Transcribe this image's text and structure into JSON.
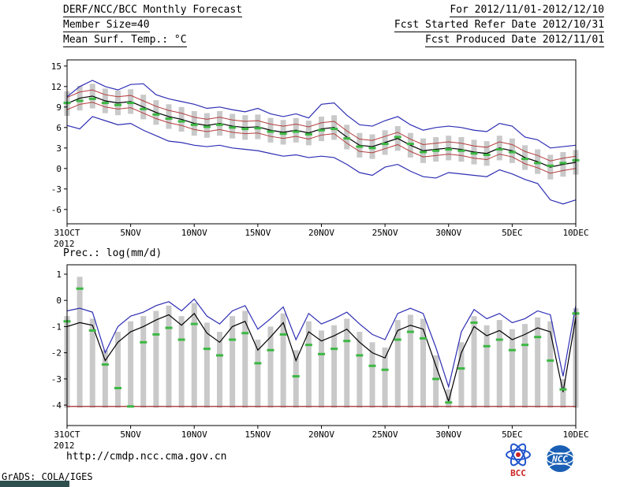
{
  "header": {
    "left": [
      "DERF/NCC/BCC Monthly Forecast",
      "Member Size=40",
      "Mean Surf. Temp.: °C"
    ],
    "right": [
      "For 2012/11/01-2012/12/10",
      "Fcst Started Refer Date 2012/10/31",
      "Fcst Produced Date 2012/11/01"
    ]
  },
  "footer": {
    "url": "http://cmdp.ncc.cma.gov.cn",
    "grads_credit": "GrADS: COLA/IGES",
    "bcc_label": "BCC",
    "ncc_label": "NCC"
  },
  "colors": {
    "bar": "#c9c9c9",
    "mean": "#000000",
    "spread": "#b43c3c",
    "envelope": "#2e2eb4",
    "median": "#3cb843",
    "baseline": "#a02828",
    "frame": "#000000"
  },
  "chart_data": [
    {
      "type": "line",
      "title": "Mean Surf. Temp.: °C",
      "x_year_label": "2012",
      "x_tick_positions": [
        0,
        5,
        10,
        15,
        20,
        25,
        30,
        35,
        40
      ],
      "x_tick_labels": [
        "31OCT",
        "5NOV",
        "10NOV",
        "15NOV",
        "20NOV",
        "25NOV",
        "30NOV",
        "5DEC",
        "10DEC"
      ],
      "y_ticks": [
        15,
        12,
        9,
        6,
        3,
        0,
        -3,
        -6
      ],
      "ylim": [
        -8.1,
        15.9
      ],
      "xlim": [
        0,
        40
      ],
      "series": [
        {
          "name": "max-envelope",
          "color": "#2e2eb4",
          "width": 1.2,
          "values": [
            10.5,
            12.0,
            12.9,
            12.0,
            11.5,
            12.3,
            12.4,
            10.8,
            10.2,
            9.8,
            9.4,
            8.8,
            9.0,
            8.6,
            8.3,
            8.8,
            8.0,
            7.6,
            8.0,
            7.4,
            9.4,
            9.6,
            7.8,
            6.4,
            6.2,
            7.0,
            7.6,
            6.4,
            5.6,
            6.0,
            6.2,
            6.0,
            5.6,
            5.4,
            6.6,
            6.2,
            4.6,
            4.2,
            3.0,
            3.2,
            3.4
          ]
        },
        {
          "name": "upper-spread",
          "color": "#b43c3c",
          "width": 1.0,
          "values": [
            10.4,
            11.2,
            11.5,
            10.8,
            10.5,
            10.7,
            9.9,
            9.1,
            8.5,
            8.1,
            7.5,
            7.2,
            7.5,
            7.1,
            6.9,
            7.0,
            6.5,
            6.2,
            6.5,
            6.1,
            6.7,
            6.9,
            5.5,
            4.3,
            4.1,
            4.7,
            5.3,
            4.3,
            3.5,
            3.7,
            3.9,
            3.7,
            3.3,
            3.1,
            3.9,
            3.5,
            2.5,
            1.9,
            1.1,
            1.5,
            1.8
          ]
        },
        {
          "name": "ensemble-mean",
          "color": "#000000",
          "width": 1.2,
          "values": [
            9.5,
            10.3,
            10.6,
            9.9,
            9.6,
            9.8,
            9.0,
            8.2,
            7.6,
            7.2,
            6.6,
            6.3,
            6.6,
            6.2,
            6.0,
            6.1,
            5.6,
            5.3,
            5.6,
            5.2,
            5.8,
            6.0,
            4.6,
            3.4,
            3.2,
            3.8,
            4.4,
            3.4,
            2.6,
            2.8,
            3.0,
            2.8,
            2.4,
            2.2,
            3.0,
            2.6,
            1.6,
            1.0,
            0.2,
            0.6,
            0.9
          ]
        },
        {
          "name": "lower-spread",
          "color": "#b43c3c",
          "width": 1.0,
          "values": [
            8.6,
            9.4,
            9.7,
            9.0,
            8.7,
            8.9,
            8.1,
            7.3,
            6.7,
            6.3,
            5.7,
            5.4,
            5.7,
            5.3,
            5.1,
            5.2,
            4.7,
            4.4,
            4.7,
            4.3,
            4.9,
            5.1,
            3.7,
            2.5,
            2.3,
            2.9,
            3.5,
            2.5,
            1.7,
            1.9,
            2.1,
            1.9,
            1.5,
            1.3,
            2.1,
            1.7,
            0.7,
            0.1,
            -0.7,
            -0.3,
            0.0
          ]
        },
        {
          "name": "min-envelope",
          "color": "#2e2eb4",
          "width": 1.2,
          "values": [
            6.3,
            5.8,
            7.6,
            7.0,
            6.4,
            6.6,
            5.6,
            4.8,
            4.0,
            3.8,
            3.4,
            3.2,
            3.4,
            3.0,
            2.8,
            2.6,
            2.2,
            1.8,
            2.0,
            1.6,
            1.8,
            1.6,
            0.6,
            -0.6,
            -1.0,
            0.2,
            0.6,
            -0.4,
            -1.2,
            -1.4,
            -0.6,
            -0.8,
            -1.0,
            -1.2,
            -0.2,
            -0.8,
            -1.6,
            -2.2,
            -4.6,
            -5.2,
            -4.6
          ]
        }
      ],
      "median_marks": {
        "name": "ensemble-median",
        "color": "#3cb843",
        "values": [
          9.6,
          9.9,
          10.2,
          9.6,
          9.3,
          9.6,
          8.7,
          7.9,
          7.3,
          6.9,
          6.4,
          6.1,
          6.4,
          6.0,
          5.8,
          5.9,
          5.4,
          5.1,
          5.4,
          5.0,
          5.6,
          5.8,
          4.4,
          3.2,
          3.0,
          3.6,
          4.6,
          3.6,
          2.4,
          2.6,
          2.8,
          2.6,
          2.2,
          2.0,
          2.8,
          2.4,
          1.4,
          0.8,
          0.4,
          0.8,
          1.2
        ]
      },
      "bars": {
        "name": "ensemble-spread-bars",
        "color": "#c9c9c9",
        "top": [
          11.3,
          12.1,
          12.4,
          11.7,
          11.4,
          11.6,
          10.8,
          10.0,
          9.4,
          9.0,
          8.4,
          8.1,
          8.4,
          8.0,
          7.8,
          7.9,
          7.4,
          7.1,
          7.4,
          7.0,
          7.6,
          7.8,
          6.4,
          5.2,
          5.0,
          5.6,
          6.2,
          5.2,
          4.4,
          4.6,
          4.8,
          4.6,
          4.2,
          4.0,
          4.8,
          4.4,
          3.4,
          2.8,
          2.0,
          2.4,
          2.7
        ],
        "bottom": [
          7.7,
          8.5,
          8.8,
          8.1,
          7.8,
          8.0,
          7.2,
          6.4,
          5.8,
          5.4,
          4.8,
          4.5,
          4.8,
          4.4,
          4.2,
          4.3,
          3.8,
          3.5,
          3.8,
          3.4,
          4.0,
          4.2,
          2.8,
          1.6,
          1.4,
          2.0,
          2.6,
          1.6,
          0.8,
          1.0,
          1.2,
          1.0,
          0.6,
          0.4,
          1.2,
          0.8,
          -0.2,
          -0.8,
          -1.6,
          -1.2,
          -0.9
        ]
      }
    },
    {
      "type": "line",
      "title": "Prec.: log(mm/d)",
      "x_year_label": "2012",
      "x_tick_positions": [
        0,
        5,
        10,
        15,
        20,
        25,
        30,
        35,
        40
      ],
      "x_tick_labels": [
        "31OCT",
        "5NOV",
        "10NOV",
        "15NOV",
        "20NOV",
        "25NOV",
        "30NOV",
        "5DEC",
        "10DEC"
      ],
      "y_ticks": [
        1,
        0,
        -1,
        -2,
        -3,
        -4
      ],
      "ylim": [
        -4.78,
        1.36
      ],
      "xlim": [
        0,
        40
      ],
      "baseline": {
        "value": -4.05,
        "color": "#a02828"
      },
      "series": [
        {
          "name": "max-envelope",
          "color": "#2e2eb4",
          "width": 1.2,
          "values": [
            -0.4,
            -0.3,
            -0.45,
            -2.0,
            -1.0,
            -0.6,
            -0.45,
            -0.2,
            -0.05,
            -0.4,
            0.05,
            -0.6,
            -0.9,
            -0.4,
            -0.2,
            -1.1,
            -0.7,
            -0.25,
            -1.5,
            -0.5,
            -0.9,
            -0.7,
            -0.45,
            -0.9,
            -1.3,
            -1.5,
            -0.5,
            -0.3,
            -0.5,
            -1.8,
            -3.3,
            -1.2,
            -0.35,
            -0.7,
            -0.5,
            -0.85,
            -0.7,
            -0.4,
            -0.55,
            -2.9,
            -0.2
          ]
        },
        {
          "name": "ensemble-mean",
          "color": "#000000",
          "width": 1.2,
          "values": [
            -1.0,
            -0.85,
            -0.95,
            -2.3,
            -1.6,
            -1.2,
            -1.0,
            -0.75,
            -0.55,
            -0.95,
            -0.5,
            -1.25,
            -1.6,
            -1.0,
            -0.8,
            -1.9,
            -1.4,
            -0.85,
            -2.3,
            -1.2,
            -1.55,
            -1.35,
            -1.1,
            -1.6,
            -2.0,
            -2.2,
            -1.15,
            -0.95,
            -1.1,
            -2.5,
            -3.85,
            -2.0,
            -1.0,
            -1.35,
            -1.15,
            -1.5,
            -1.3,
            -1.05,
            -1.2,
            -3.5,
            -0.65
          ]
        }
      ],
      "median_marks": {
        "name": "ensemble-median",
        "color": "#3cb843",
        "values": [
          -0.8,
          0.45,
          -1.15,
          -2.45,
          -3.35,
          -4.05,
          -1.6,
          -1.3,
          -1.05,
          -1.5,
          -0.9,
          -1.85,
          -2.1,
          -1.5,
          -1.25,
          -2.4,
          -1.9,
          -1.3,
          -2.9,
          -1.7,
          -2.05,
          -1.85,
          -1.55,
          -2.1,
          -2.5,
          -2.65,
          -1.5,
          -1.2,
          -1.45,
          -3.0,
          -3.9,
          -2.6,
          -0.85,
          -1.75,
          -1.5,
          -1.9,
          -1.7,
          -1.4,
          -2.3,
          -3.4,
          -0.5
        ]
      },
      "bars": {
        "name": "ensemble-spread-bars",
        "color": "#c9c9c9",
        "top": [
          -0.6,
          0.9,
          -0.7,
          -1.9,
          -1.2,
          -0.8,
          -0.6,
          -0.4,
          -0.2,
          -0.6,
          -0.1,
          -0.85,
          -1.2,
          -0.6,
          -0.4,
          -1.5,
          -1.0,
          -0.5,
          -1.9,
          -0.8,
          -1.15,
          -0.95,
          -0.7,
          -1.2,
          -1.6,
          -1.8,
          -0.75,
          -0.55,
          -0.7,
          -2.1,
          -3.4,
          -1.6,
          -0.6,
          -0.95,
          -0.75,
          -1.1,
          -0.9,
          -0.65,
          -0.8,
          -3.0,
          -0.3
        ],
        "bottom": -4.1
      }
    }
  ]
}
